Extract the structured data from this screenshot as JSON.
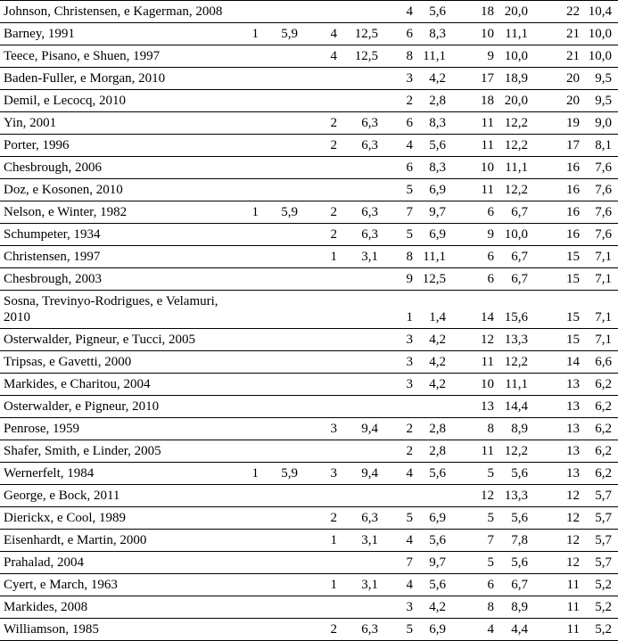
{
  "colors": {
    "text": "#000000",
    "border": "#000000",
    "background": "#ffffff"
  },
  "table": {
    "description": "Citation frequency table: author/year rows with five pairs of count and percentage columns (comma decimal separator)",
    "rows": [
      {
        "author": "Johnson, Christensen, e Kagerman, 2008",
        "values": [
          "",
          "",
          "",
          "",
          "4",
          "5,6",
          "18",
          "20,0",
          "22",
          "10,4"
        ]
      },
      {
        "author": "Barney, 1991",
        "values": [
          "1",
          "5,9",
          "4",
          "12,5",
          "6",
          "8,3",
          "10",
          "11,1",
          "21",
          "10,0"
        ]
      },
      {
        "author": "Teece, Pisano, e Shuen, 1997",
        "values": [
          "",
          "",
          "4",
          "12,5",
          "8",
          "11,1",
          "9",
          "10,0",
          "21",
          "10,0"
        ]
      },
      {
        "author": "Baden-Fuller, e Morgan, 2010",
        "values": [
          "",
          "",
          "",
          "",
          "3",
          "4,2",
          "17",
          "18,9",
          "20",
          "9,5"
        ]
      },
      {
        "author": "Demil, e Lecocq, 2010",
        "values": [
          "",
          "",
          "",
          "",
          "2",
          "2,8",
          "18",
          "20,0",
          "20",
          "9,5"
        ]
      },
      {
        "author": "Yin, 2001",
        "values": [
          "",
          "",
          "2",
          "6,3",
          "6",
          "8,3",
          "11",
          "12,2",
          "19",
          "9,0"
        ]
      },
      {
        "author": "Porter, 1996",
        "values": [
          "",
          "",
          "2",
          "6,3",
          "4",
          "5,6",
          "11",
          "12,2",
          "17",
          "8,1"
        ]
      },
      {
        "author": "Chesbrough, 2006",
        "values": [
          "",
          "",
          "",
          "",
          "6",
          "8,3",
          "10",
          "11,1",
          "16",
          "7,6"
        ]
      },
      {
        "author": "Doz, e Kosonen, 2010",
        "values": [
          "",
          "",
          "",
          "",
          "5",
          "6,9",
          "11",
          "12,2",
          "16",
          "7,6"
        ]
      },
      {
        "author": "Nelson, e Winter, 1982",
        "values": [
          "1",
          "5,9",
          "2",
          "6,3",
          "7",
          "9,7",
          "6",
          "6,7",
          "16",
          "7,6"
        ]
      },
      {
        "author": "Schumpeter, 1934",
        "values": [
          "",
          "",
          "2",
          "6,3",
          "5",
          "6,9",
          "9",
          "10,0",
          "16",
          "7,6"
        ]
      },
      {
        "author": "Christensen, 1997",
        "values": [
          "",
          "",
          "1",
          "3,1",
          "8",
          "11,1",
          "6",
          "6,7",
          "15",
          "7,1"
        ]
      },
      {
        "author": "Chesbrough, 2003",
        "values": [
          "",
          "",
          "",
          "",
          "9",
          "12,5",
          "6",
          "6,7",
          "15",
          "7,1"
        ]
      },
      {
        "author": "Sosna, Trevinyo-Rodrigues, e Velamuri, 2010",
        "values": [
          "",
          "",
          "",
          "",
          "1",
          "1,4",
          "14",
          "15,6",
          "15",
          "7,1"
        ]
      },
      {
        "author": "Osterwalder, Pigneur, e Tucci, 2005",
        "values": [
          "",
          "",
          "",
          "",
          "3",
          "4,2",
          "12",
          "13,3",
          "15",
          "7,1"
        ]
      },
      {
        "author": "Tripsas, e Gavetti, 2000",
        "values": [
          "",
          "",
          "",
          "",
          "3",
          "4,2",
          "11",
          "12,2",
          "14",
          "6,6"
        ]
      },
      {
        "author": "Markides, e Charitou, 2004",
        "values": [
          "",
          "",
          "",
          "",
          "3",
          "4,2",
          "10",
          "11,1",
          "13",
          "6,2"
        ]
      },
      {
        "author": "Osterwalder, e Pigneur, 2010",
        "values": [
          "",
          "",
          "",
          "",
          "",
          "",
          "13",
          "14,4",
          "13",
          "6,2"
        ]
      },
      {
        "author": "Penrose, 1959",
        "values": [
          "",
          "",
          "3",
          "9,4",
          "2",
          "2,8",
          "8",
          "8,9",
          "13",
          "6,2"
        ]
      },
      {
        "author": "Shafer, Smith, e Linder, 2005",
        "values": [
          "",
          "",
          "",
          "",
          "2",
          "2,8",
          "11",
          "12,2",
          "13",
          "6,2"
        ]
      },
      {
        "author": "Wernerfelt, 1984",
        "values": [
          "1",
          "5,9",
          "3",
          "9,4",
          "4",
          "5,6",
          "5",
          "5,6",
          "13",
          "6,2"
        ]
      },
      {
        "author": "George, e Bock, 2011",
        "values": [
          "",
          "",
          "",
          "",
          "",
          "",
          "12",
          "13,3",
          "12",
          "5,7"
        ]
      },
      {
        "author": "Dierickx, e Cool, 1989",
        "values": [
          "",
          "",
          "2",
          "6,3",
          "5",
          "6,9",
          "5",
          "5,6",
          "12",
          "5,7"
        ]
      },
      {
        "author": "Eisenhardt, e Martin, 2000",
        "values": [
          "",
          "",
          "1",
          "3,1",
          "4",
          "5,6",
          "7",
          "7,8",
          "12",
          "5,7"
        ]
      },
      {
        "author": "Prahalad, 2004",
        "values": [
          "",
          "",
          "",
          "",
          "7",
          "9,7",
          "5",
          "5,6",
          "12",
          "5,7"
        ]
      },
      {
        "author": "Cyert, e March, 1963",
        "values": [
          "",
          "",
          "1",
          "3,1",
          "4",
          "5,6",
          "6",
          "6,7",
          "11",
          "5,2"
        ]
      },
      {
        "author": "Markides, 2008",
        "values": [
          "",
          "",
          "",
          "",
          "3",
          "4,2",
          "8",
          "8,9",
          "11",
          "5,2"
        ]
      },
      {
        "author": "Williamson, 1985",
        "values": [
          "",
          "",
          "2",
          "6,3",
          "5",
          "6,9",
          "4",
          "4,4",
          "11",
          "5,2"
        ]
      }
    ]
  }
}
